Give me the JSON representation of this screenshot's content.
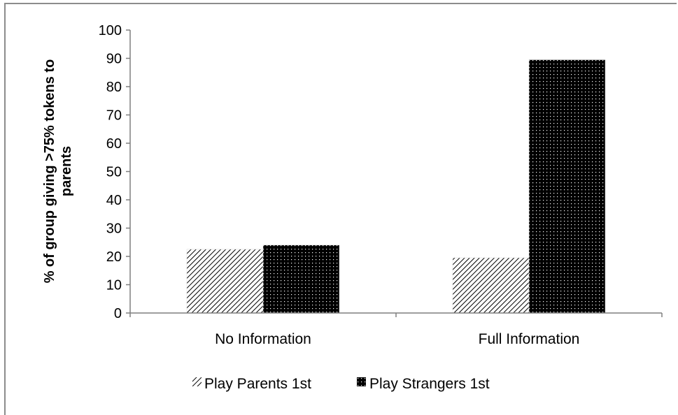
{
  "chart_data": {
    "type": "bar",
    "title": "",
    "xlabel": "",
    "ylabel": "% of group giving >75% tokens to parents",
    "ylabel_lines": [
      "% of group giving >75% tokens to",
      "parents"
    ],
    "ylim": [
      0,
      100
    ],
    "yticks": [
      "0",
      "10",
      "20",
      "30",
      "40",
      "50",
      "60",
      "70",
      "80",
      "90",
      "100"
    ],
    "categories": [
      "No Information",
      "Full Information"
    ],
    "series": [
      {
        "name": "Play Parents 1st",
        "values": [
          22.5,
          19.5
        ],
        "pattern": "diagonal-hatch"
      },
      {
        "name": "Play Strangers 1st",
        "values": [
          24.0,
          89.5
        ],
        "pattern": "dotted-black"
      }
    ],
    "legend_position": "bottom",
    "grid": false,
    "colors": {
      "bar_fill": "#000000",
      "axis": "#7f7f7f",
      "frame": "#8c8c8c"
    }
  }
}
